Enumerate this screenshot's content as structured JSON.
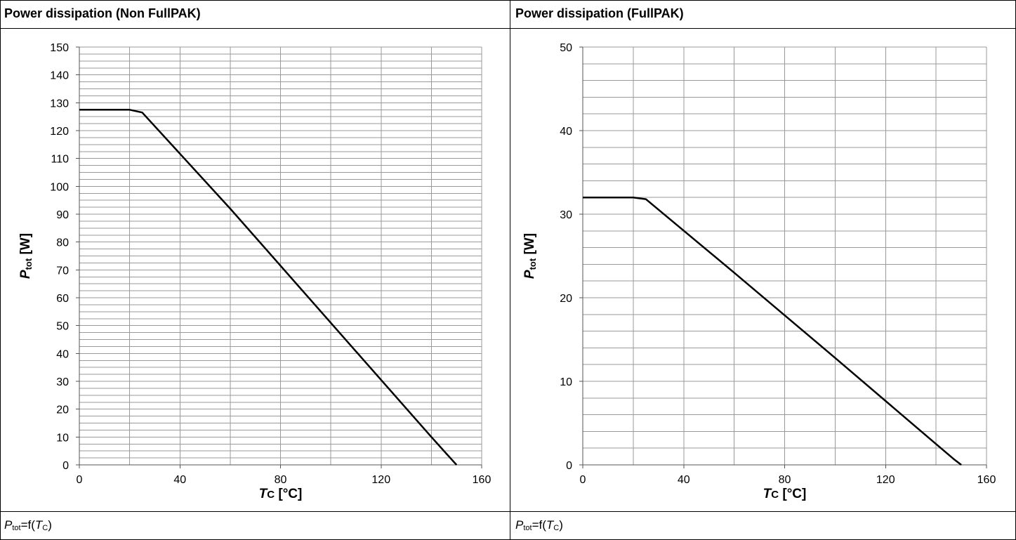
{
  "panels": [
    {
      "title": "Power dissipation (Non FullPAK)",
      "footer": {
        "p": "P",
        "sub": "tot",
        "eq": "=f(",
        "t": "T",
        "tsub": "C",
        "close": ")"
      }
    },
    {
      "title": "Power dissipation (FullPAK)",
      "footer": {
        "p": "P",
        "sub": "tot",
        "eq": "=f(",
        "t": "T",
        "tsub": "C",
        "close": ")"
      }
    }
  ],
  "chart_data": [
    {
      "type": "line",
      "title": "Power dissipation (Non FullPAK)",
      "xlabel": "TC [°C]",
      "ylabel": "Ptot [W]",
      "xlim": [
        0,
        160
      ],
      "ylim": [
        0,
        150
      ],
      "xticks": [
        0,
        40,
        80,
        120,
        160
      ],
      "yticks": [
        0,
        10,
        20,
        30,
        40,
        50,
        60,
        70,
        80,
        90,
        100,
        110,
        120,
        130,
        140,
        150
      ],
      "grid": true,
      "series": [
        {
          "x": [
            0,
            20,
            25,
            60,
            100,
            140,
            147,
            150
          ],
          "y": [
            127.5,
            127.5,
            126.5,
            92,
            51,
            10,
            3,
            0
          ]
        }
      ]
    },
    {
      "type": "line",
      "title": "Power dissipation (FullPAK)",
      "xlabel": "TC [°C]",
      "ylabel": "Ptot [W]",
      "xlim": [
        0,
        160
      ],
      "ylim": [
        0,
        50
      ],
      "xticks": [
        0,
        40,
        80,
        120,
        160
      ],
      "yticks": [
        0,
        10,
        20,
        30,
        40,
        50
      ],
      "grid": true,
      "series": [
        {
          "x": [
            0,
            20,
            25,
            60,
            100,
            140,
            147,
            150
          ],
          "y": [
            32,
            32,
            31.8,
            23,
            12.8,
            2.5,
            0.7,
            0
          ]
        }
      ]
    }
  ]
}
